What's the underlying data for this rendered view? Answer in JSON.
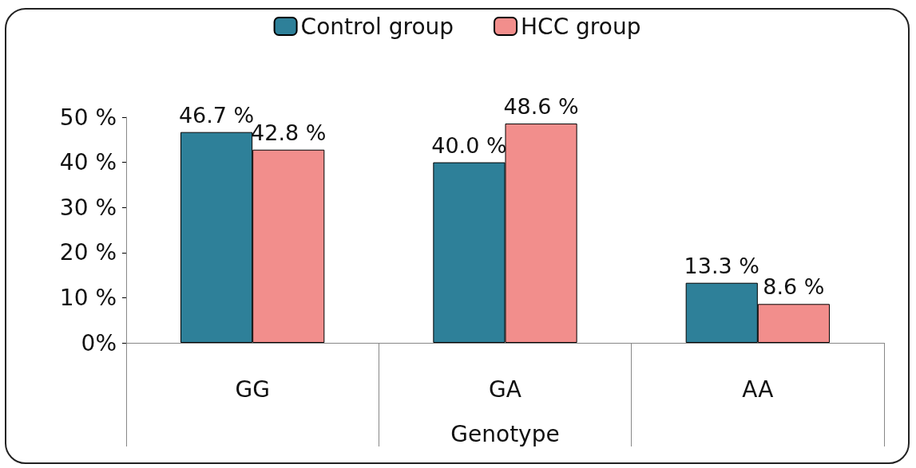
{
  "chart_data": {
    "type": "bar",
    "xlabel": "Genotype",
    "categories": [
      "GG",
      "GA",
      "AA"
    ],
    "series": [
      {
        "name": "Control group",
        "color": "#2e8099",
        "values": [
          46.7,
          40.0,
          13.3
        ],
        "value_labels": [
          "46.7 %",
          "40.0 %",
          "13.3 %"
        ]
      },
      {
        "name": "HCC group",
        "color": "#f28e8c",
        "values": [
          42.8,
          48.6,
          8.6
        ],
        "value_labels": [
          "42.8 %",
          "48.6 %",
          "8.6 %"
        ]
      }
    ],
    "ylim": [
      0,
      50
    ],
    "yticks": [
      {
        "value": 0,
        "label": "0%"
      },
      {
        "value": 10,
        "label": "10 %"
      },
      {
        "value": 20,
        "label": "20 %"
      },
      {
        "value": 30,
        "label": "30 %"
      },
      {
        "value": 40,
        "label": "40 %"
      },
      {
        "value": 50,
        "label": "50 %"
      }
    ],
    "grid": false,
    "legend": "top"
  }
}
